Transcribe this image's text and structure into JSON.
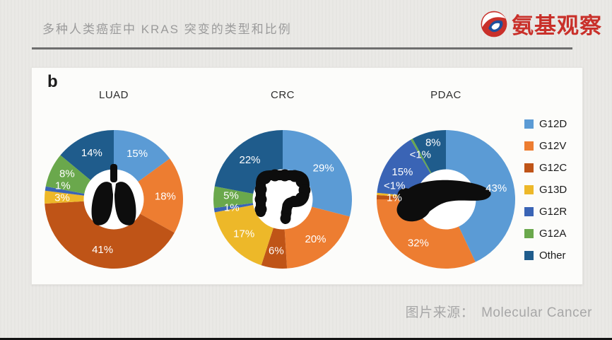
{
  "header": {
    "title": "多种人类癌症中 KRAS 突变的类型和比例",
    "logo_text": "氨基观察",
    "logo_color": "#c9302a"
  },
  "panel_label": "b",
  "caption": {
    "label": "图片来源：",
    "value": "Molecular Cancer"
  },
  "legend": {
    "position": "right",
    "items": [
      {
        "name": "G12D",
        "color": "#5b9bd5"
      },
      {
        "name": "G12V",
        "color": "#ed7d31"
      },
      {
        "name": "G12C",
        "color": "#bf5417"
      },
      {
        "name": "G13D",
        "color": "#edb829"
      },
      {
        "name": "G12R",
        "color": "#3a64b5"
      },
      {
        "name": "G12A",
        "color": "#6aa84c"
      },
      {
        "name": "Other",
        "color": "#1f5c8c"
      }
    ]
  },
  "chart_data": [
    {
      "type": "pie",
      "subtype": "donut",
      "title": "LUAD",
      "icon": "lungs-icon",
      "slices": [
        {
          "name": "G12D",
          "value": 15,
          "label": "15%"
        },
        {
          "name": "G12V",
          "value": 18,
          "label": "18%"
        },
        {
          "name": "G12C",
          "value": 41,
          "label": "41%"
        },
        {
          "name": "G13D",
          "value": 3,
          "label": "3%"
        },
        {
          "name": "G12R",
          "value": 1,
          "label": "1%"
        },
        {
          "name": "G12A",
          "value": 8,
          "label": "8%"
        },
        {
          "name": "Other",
          "value": 14,
          "label": "14%"
        }
      ]
    },
    {
      "type": "pie",
      "subtype": "donut",
      "title": "CRC",
      "icon": "colon-icon",
      "slices": [
        {
          "name": "G12D",
          "value": 29,
          "label": "29%"
        },
        {
          "name": "G12V",
          "value": 20,
          "label": "20%"
        },
        {
          "name": "G12C",
          "value": 6,
          "label": "6%"
        },
        {
          "name": "G13D",
          "value": 17,
          "label": "17%"
        },
        {
          "name": "G12R",
          "value": 1,
          "label": "1%"
        },
        {
          "name": "G12A",
          "value": 5,
          "label": "5%"
        },
        {
          "name": "Other",
          "value": 22,
          "label": "22%"
        }
      ]
    },
    {
      "type": "pie",
      "subtype": "donut",
      "title": "PDAC",
      "icon": "pancreas-icon",
      "slices": [
        {
          "name": "G12D",
          "value": 43,
          "label": "43%"
        },
        {
          "name": "G12V",
          "value": 32,
          "label": "32%"
        },
        {
          "name": "G12C",
          "value": 1,
          "label": "1%"
        },
        {
          "name": "G13D",
          "value": 0.5,
          "label": "<1%"
        },
        {
          "name": "G12R",
          "value": 15,
          "label": "15%"
        },
        {
          "name": "G12A",
          "value": 0.5,
          "label": "<1%"
        },
        {
          "name": "Other",
          "value": 8,
          "label": "8%"
        }
      ]
    }
  ]
}
